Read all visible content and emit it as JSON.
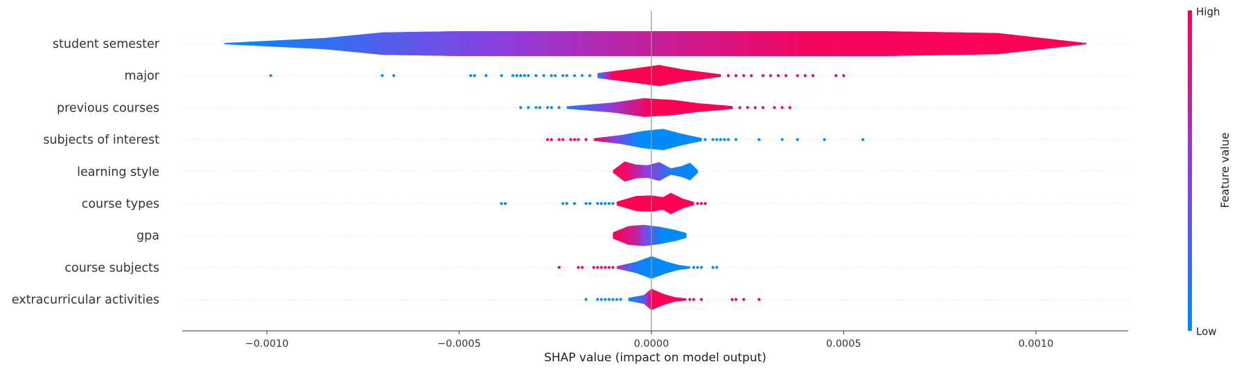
{
  "chart_data": {
    "type": "violin",
    "title": "",
    "xlabel": "SHAP value (impact on model output)",
    "ylabel": "",
    "xlim": [
      -0.00122,
      0.00124
    ],
    "x_ticks": [
      -0.001,
      -0.0005,
      0.0,
      0.0005,
      0.001
    ],
    "x_tick_labels": [
      "−0.0010",
      "−0.0005",
      "0.0000",
      "0.0005",
      "0.0010"
    ],
    "colorbar": {
      "label": "Feature value",
      "high_label": "High",
      "low_label": "Low",
      "low_color": "#008bfb",
      "high_color": "#ff0052"
    },
    "features": [
      {
        "name": "student semester",
        "range": [
          -0.00111,
          0.00113
        ],
        "violin": [
          [
            -0.00111,
            0.05
          ],
          [
            -0.00085,
            0.45
          ],
          [
            -0.0007,
            0.9
          ],
          [
            -0.0005,
            1.0
          ],
          [
            -0.0002,
            1.0
          ],
          [
            0.0,
            1.0
          ],
          [
            0.0003,
            1.0
          ],
          [
            0.0006,
            1.0
          ],
          [
            0.0009,
            0.85
          ],
          [
            0.00113,
            0.05
          ]
        ],
        "colors": [
          [
            -0.00111,
            0.0
          ],
          [
            -0.0004,
            0.5
          ],
          [
            0.0,
            0.75
          ],
          [
            0.0004,
            0.95
          ],
          [
            0.00113,
            1.0
          ]
        ],
        "outliers": []
      },
      {
        "name": "major",
        "range": [
          -0.00014,
          0.00018
        ],
        "violin": [
          [
            -0.00014,
            0.2
          ],
          [
            -5e-05,
            0.55
          ],
          [
            2e-05,
            0.85
          ],
          [
            8e-05,
            0.5
          ],
          [
            0.00013,
            0.3
          ],
          [
            0.00018,
            0.1
          ]
        ],
        "colors": [
          [
            -0.00014,
            0.05
          ],
          [
            -0.0001,
            1.0
          ],
          [
            0.00018,
            1.0
          ]
        ],
        "outliers": [
          {
            "x": -0.00099,
            "v": 0
          },
          {
            "x": -0.0007,
            "v": 0
          },
          {
            "x": -0.00067,
            "v": 0
          },
          {
            "x": -0.00047,
            "v": 0
          },
          {
            "x": -0.00046,
            "v": 0
          },
          {
            "x": -0.00043,
            "v": 0
          },
          {
            "x": -0.00039,
            "v": 0
          },
          {
            "x": -0.00036,
            "v": 0
          },
          {
            "x": -0.00035,
            "v": 0
          },
          {
            "x": -0.00034,
            "v": 0
          },
          {
            "x": -0.00033,
            "v": 0
          },
          {
            "x": -0.00032,
            "v": 0
          },
          {
            "x": -0.0003,
            "v": 0
          },
          {
            "x": -0.00028,
            "v": 0
          },
          {
            "x": -0.00026,
            "v": 0
          },
          {
            "x": -0.00025,
            "v": 0
          },
          {
            "x": -0.00023,
            "v": 0
          },
          {
            "x": -0.00022,
            "v": 0
          },
          {
            "x": -0.0002,
            "v": 0
          },
          {
            "x": -0.00018,
            "v": 0
          },
          {
            "x": -0.00016,
            "v": 0
          },
          {
            "x": 0.0002,
            "v": 1
          },
          {
            "x": 0.00022,
            "v": 1
          },
          {
            "x": 0.00024,
            "v": 1
          },
          {
            "x": 0.00026,
            "v": 1
          },
          {
            "x": 0.00029,
            "v": 1
          },
          {
            "x": 0.00031,
            "v": 1
          },
          {
            "x": 0.00033,
            "v": 1
          },
          {
            "x": 0.00035,
            "v": 1
          },
          {
            "x": 0.00038,
            "v": 1
          },
          {
            "x": 0.0004,
            "v": 1
          },
          {
            "x": 0.00042,
            "v": 1
          },
          {
            "x": 0.00048,
            "v": 1
          },
          {
            "x": 0.0005,
            "v": 1
          }
        ]
      },
      {
        "name": "previous courses",
        "range": [
          -0.00022,
          0.00021
        ],
        "violin": [
          [
            -0.00022,
            0.1
          ],
          [
            -0.0001,
            0.4
          ],
          [
            -2e-05,
            0.75
          ],
          [
            6e-05,
            0.6
          ],
          [
            0.00012,
            0.35
          ],
          [
            0.00021,
            0.12
          ]
        ],
        "colors": [
          [
            -0.00022,
            0.05
          ],
          [
            -0.0001,
            0.55
          ],
          [
            0.0,
            1.0
          ],
          [
            0.00021,
            1.0
          ]
        ],
        "outliers": [
          {
            "x": -0.00034,
            "v": 0
          },
          {
            "x": -0.00032,
            "v": 0
          },
          {
            "x": -0.0003,
            "v": 0
          },
          {
            "x": -0.00029,
            "v": 0
          },
          {
            "x": -0.00027,
            "v": 0
          },
          {
            "x": -0.00026,
            "v": 0
          },
          {
            "x": -0.00024,
            "v": 0
          },
          {
            "x": 0.00023,
            "v": 1
          },
          {
            "x": 0.00025,
            "v": 1
          },
          {
            "x": 0.00027,
            "v": 1
          },
          {
            "x": 0.00029,
            "v": 1
          },
          {
            "x": 0.00032,
            "v": 1
          },
          {
            "x": 0.00034,
            "v": 1
          },
          {
            "x": 0.00036,
            "v": 1
          }
        ]
      },
      {
        "name": "subjects of interest",
        "range": [
          -0.00015,
          0.00013
        ],
        "violin": [
          [
            -0.00015,
            0.1
          ],
          [
            -8e-05,
            0.35
          ],
          [
            -2e-05,
            0.7
          ],
          [
            3e-05,
            0.85
          ],
          [
            8e-05,
            0.45
          ],
          [
            0.00013,
            0.12
          ]
        ],
        "colors": [
          [
            -0.00015,
            1.0
          ],
          [
            -8e-05,
            0.35
          ],
          [
            -3e-05,
            0.0
          ],
          [
            0.00013,
            0.0
          ]
        ],
        "outliers": [
          {
            "x": -0.00027,
            "v": 1
          },
          {
            "x": -0.00026,
            "v": 1
          },
          {
            "x": -0.00024,
            "v": 1
          },
          {
            "x": -0.00023,
            "v": 1
          },
          {
            "x": -0.00021,
            "v": 1
          },
          {
            "x": -0.0002,
            "v": 1
          },
          {
            "x": -0.00019,
            "v": 1
          },
          {
            "x": -0.00017,
            "v": 1
          },
          {
            "x": 0.00014,
            "v": 0
          },
          {
            "x": 0.00016,
            "v": 0
          },
          {
            "x": 0.00017,
            "v": 0
          },
          {
            "x": 0.00018,
            "v": 0
          },
          {
            "x": 0.00019,
            "v": 0
          },
          {
            "x": 0.0002,
            "v": 0
          },
          {
            "x": 0.00022,
            "v": 0
          },
          {
            "x": 0.00028,
            "v": 0
          },
          {
            "x": 0.00034,
            "v": 0
          },
          {
            "x": 0.00038,
            "v": 0
          },
          {
            "x": 0.00045,
            "v": 0
          },
          {
            "x": 0.00055,
            "v": 0
          }
        ]
      },
      {
        "name": "learning style",
        "range": [
          -0.0001,
          0.00012
        ],
        "violin": [
          [
            -0.0001,
            0.1
          ],
          [
            -7e-05,
            0.8
          ],
          [
            -4e-05,
            0.55
          ],
          [
            -1e-05,
            0.5
          ],
          [
            2e-05,
            0.75
          ],
          [
            5e-05,
            0.25
          ],
          [
            8e-05,
            0.45
          ],
          [
            0.0001,
            0.7
          ],
          [
            0.00012,
            0.1
          ]
        ],
        "colors": [
          [
            -0.0001,
            1.0
          ],
          [
            -6e-05,
            0.9
          ],
          [
            -2e-05,
            0.55
          ],
          [
            2e-05,
            0.35
          ],
          [
            5e-05,
            0.1
          ],
          [
            0.00012,
            0.0
          ]
        ],
        "outliers": []
      },
      {
        "name": "course types",
        "range": [
          -9e-05,
          0.00011
        ],
        "violin": [
          [
            -9e-05,
            0.15
          ],
          [
            -4e-05,
            0.6
          ],
          [
            0.0,
            0.65
          ],
          [
            3e-05,
            0.5
          ],
          [
            5e-05,
            0.85
          ],
          [
            8e-05,
            0.4
          ],
          [
            0.00011,
            0.12
          ]
        ],
        "colors": [
          [
            -9e-05,
            1.0
          ],
          [
            0.00011,
            1.0
          ]
        ],
        "outliers": [
          {
            "x": -0.00039,
            "v": 0
          },
          {
            "x": -0.00038,
            "v": 0
          },
          {
            "x": -0.00023,
            "v": 0
          },
          {
            "x": -0.00022,
            "v": 0
          },
          {
            "x": -0.0002,
            "v": 0
          },
          {
            "x": -0.00017,
            "v": 0
          },
          {
            "x": -0.00016,
            "v": 0
          },
          {
            "x": -0.00014,
            "v": 0
          },
          {
            "x": -0.00013,
            "v": 0
          },
          {
            "x": -0.00012,
            "v": 0
          },
          {
            "x": -0.00011,
            "v": 0
          },
          {
            "x": -0.0001,
            "v": 0
          },
          {
            "x": 0.00012,
            "v": 1
          },
          {
            "x": 0.00013,
            "v": 1
          },
          {
            "x": 0.00014,
            "v": 1
          }
        ]
      },
      {
        "name": "gpa",
        "range": [
          -0.0001,
          9e-05
        ],
        "violin": [
          [
            -0.0001,
            0.25
          ],
          [
            -6e-05,
            0.75
          ],
          [
            -2e-05,
            0.85
          ],
          [
            2e-05,
            0.7
          ],
          [
            6e-05,
            0.45
          ],
          [
            9e-05,
            0.2
          ]
        ],
        "colors": [
          [
            -0.0001,
            1.0
          ],
          [
            -4e-05,
            0.75
          ],
          [
            -1e-05,
            0.35
          ],
          [
            3e-05,
            0.0
          ],
          [
            9e-05,
            0.0
          ]
        ],
        "outliers": []
      },
      {
        "name": "course subjects",
        "range": [
          -9e-05,
          0.0001
        ],
        "violin": [
          [
            -9e-05,
            0.1
          ],
          [
            -4e-05,
            0.45
          ],
          [
            0.0,
            0.9
          ],
          [
            4e-05,
            0.45
          ],
          [
            7e-05,
            0.2
          ],
          [
            0.0001,
            0.08
          ]
        ],
        "colors": [
          [
            -9e-05,
            0.65
          ],
          [
            -4e-05,
            0.1
          ],
          [
            0.0,
            0.0
          ],
          [
            0.0001,
            0.0
          ]
        ],
        "outliers": [
          {
            "x": -0.00024,
            "v": 1
          },
          {
            "x": -0.00019,
            "v": 1
          },
          {
            "x": -0.00018,
            "v": 1
          },
          {
            "x": -0.00015,
            "v": 1
          },
          {
            "x": -0.00014,
            "v": 1
          },
          {
            "x": -0.00013,
            "v": 1
          },
          {
            "x": -0.00012,
            "v": 1
          },
          {
            "x": -0.00011,
            "v": 1
          },
          {
            "x": -0.0001,
            "v": 1
          },
          {
            "x": 0.00011,
            "v": 0
          },
          {
            "x": 0.00012,
            "v": 0
          },
          {
            "x": 0.00013,
            "v": 0
          },
          {
            "x": 0.00016,
            "v": 0
          },
          {
            "x": 0.00017,
            "v": 0
          }
        ]
      },
      {
        "name": "extracurricular activities",
        "range": [
          -6e-05,
          9e-05
        ],
        "violin": [
          [
            -6e-05,
            0.12
          ],
          [
            -2e-05,
            0.35
          ],
          [
            0.0,
            0.85
          ],
          [
            3e-05,
            0.45
          ],
          [
            6e-05,
            0.18
          ],
          [
            9e-05,
            0.08
          ]
        ],
        "colors": [
          [
            -6e-05,
            0.0
          ],
          [
            -2e-05,
            0.3
          ],
          [
            0.0,
            1.0
          ],
          [
            9e-05,
            1.0
          ]
        ],
        "outliers": [
          {
            "x": -0.00017,
            "v": 0
          },
          {
            "x": -0.00014,
            "v": 0
          },
          {
            "x": -0.00013,
            "v": 0
          },
          {
            "x": -0.00012,
            "v": 0
          },
          {
            "x": -0.00011,
            "v": 0
          },
          {
            "x": -0.0001,
            "v": 0
          },
          {
            "x": -9e-05,
            "v": 0
          },
          {
            "x": -8e-05,
            "v": 0
          },
          {
            "x": 0.0001,
            "v": 1
          },
          {
            "x": 0.00011,
            "v": 1
          },
          {
            "x": 0.00013,
            "v": 1
          },
          {
            "x": 0.00021,
            "v": 1
          },
          {
            "x": 0.00022,
            "v": 1
          },
          {
            "x": 0.00024,
            "v": 1
          },
          {
            "x": 0.00028,
            "v": 1
          }
        ]
      }
    ]
  }
}
